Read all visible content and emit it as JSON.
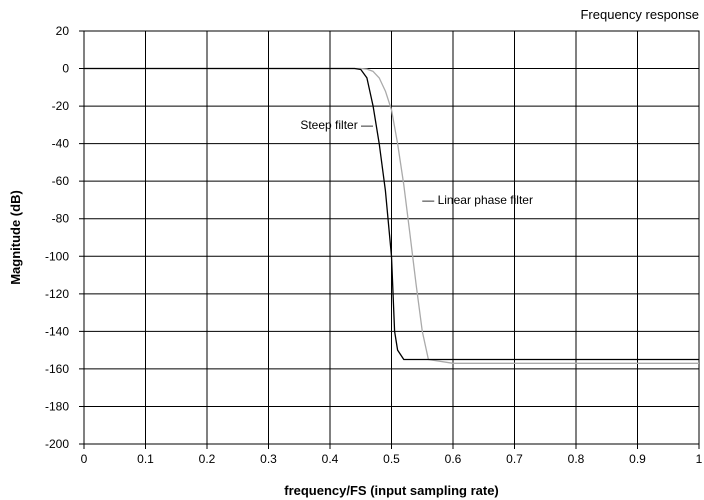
{
  "chart_data": {
    "type": "line",
    "title": "Frequency response",
    "xlabel": "frequency/FS (input sampling rate)",
    "ylabel": "Magnitude (dB)",
    "xlim": [
      0,
      1
    ],
    "ylim": [
      -200,
      20
    ],
    "x_ticks": [
      "0",
      "0.1",
      "0.2",
      "0.3",
      "0.4",
      "0.5",
      "0.6",
      "0.7",
      "0.8",
      "0.9",
      "1"
    ],
    "y_ticks": [
      "20",
      "0",
      "-20",
      "-40",
      "-60",
      "-80",
      "-100",
      "-120",
      "-140",
      "-160",
      "-180",
      "-200"
    ],
    "grid": true,
    "series": [
      {
        "name": "Steep filter",
        "color": "#000000",
        "x": [
          0,
          0.44,
          0.45,
          0.46,
          0.47,
          0.48,
          0.49,
          0.5,
          0.505,
          0.51,
          0.52,
          0.6,
          0.7,
          0.8,
          0.9,
          1.0
        ],
        "y": [
          0,
          0,
          -0.5,
          -5,
          -20,
          -40,
          -65,
          -100,
          -140,
          -150,
          -155,
          -155,
          -155,
          -155,
          -155,
          -155
        ]
      },
      {
        "name": "Linear phase filter",
        "color": "#aaaaaa",
        "x": [
          0,
          0.45,
          0.46,
          0.47,
          0.48,
          0.49,
          0.5,
          0.51,
          0.52,
          0.53,
          0.54,
          0.55,
          0.56,
          0.6,
          0.7,
          0.8,
          0.9,
          1.0
        ],
        "y": [
          0,
          0,
          -0.3,
          -1.5,
          -5,
          -12,
          -22,
          -40,
          -62,
          -88,
          -115,
          -140,
          -155,
          -157,
          -157,
          -157,
          -157,
          -157
        ]
      }
    ],
    "annotations": [
      {
        "text": "Steep filter —",
        "x": 0.47,
        "y": -30
      },
      {
        "text": "— Linear phase filter",
        "x": 0.55,
        "y": -70
      }
    ]
  }
}
